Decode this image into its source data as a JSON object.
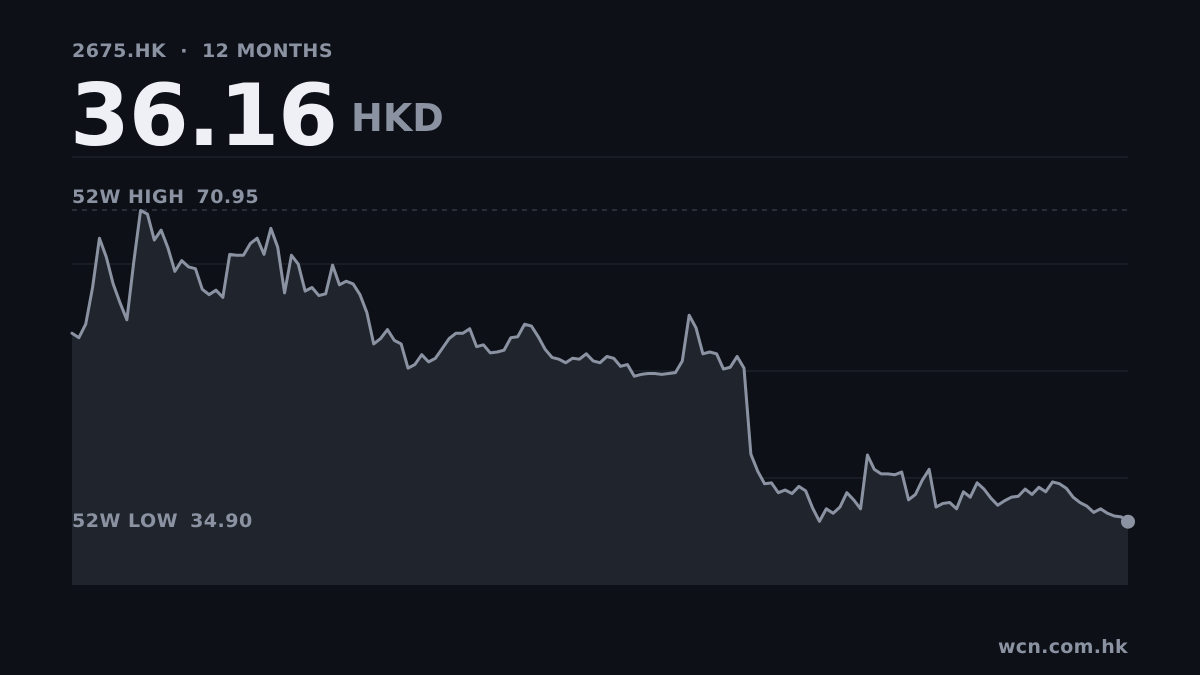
{
  "header": {
    "ticker": "2675.HK",
    "separator": "·",
    "period": "12 MONTHS"
  },
  "price": {
    "value": "36.16",
    "currency": "HKD"
  },
  "stats": {
    "high_label": "52W HIGH",
    "high_value": "70.95",
    "low_label": "52W LOW",
    "low_value": "34.90"
  },
  "footer": {
    "source": "wcn.com.hk"
  },
  "colors": {
    "background": "#0d1017",
    "line": "#8b93a3",
    "area": "#20242c",
    "grid": "#232833"
  },
  "chart_data": {
    "type": "area",
    "ylim": [
      25.0,
      71.0
    ],
    "grid": true,
    "reference_lines": [
      {
        "label": "52W HIGH",
        "value": 70.95
      },
      {
        "label": "52W LOW",
        "value": 34.9
      }
    ],
    "values": [
      57.2,
      56.7,
      58.2,
      62.3,
      67.8,
      65.7,
      62.7,
      60.6,
      58.7,
      65.1,
      70.9,
      70.5,
      67.6,
      68.7,
      66.7,
      64.1,
      65.3,
      64.6,
      64.4,
      62.1,
      61.5,
      62.0,
      61.2,
      66.0,
      65.9,
      65.9,
      67.2,
      67.8,
      66.0,
      68.9,
      66.8,
      61.7,
      65.9,
      64.9,
      61.9,
      62.3,
      61.4,
      61.6,
      64.8,
      62.6,
      63.0,
      62.7,
      61.5,
      59.5,
      56.0,
      56.6,
      57.6,
      56.4,
      56.0,
      53.3,
      53.7,
      54.8,
      54.0,
      54.4,
      55.5,
      56.6,
      57.2,
      57.2,
      57.7,
      55.7,
      55.9,
      55.0,
      55.1,
      55.3,
      56.7,
      56.8,
      58.2,
      58.0,
      56.8,
      55.4,
      54.5,
      54.3,
      53.9,
      54.4,
      54.3,
      54.9,
      54.1,
      53.9,
      54.6,
      54.4,
      53.5,
      53.7,
      52.4,
      52.6,
      52.7,
      52.7,
      52.6,
      52.7,
      52.8,
      54.1,
      59.2,
      57.8,
      54.9,
      55.1,
      54.9,
      53.2,
      53.4,
      54.6,
      53.3,
      43.7,
      41.8,
      40.4,
      40.5,
      39.4,
      39.7,
      39.3,
      40.1,
      39.6,
      37.7,
      36.2,
      37.6,
      37.1,
      37.8,
      39.4,
      38.6,
      37.6,
      43.6,
      42.0,
      41.5,
      41.5,
      41.4,
      41.7,
      38.6,
      39.2,
      40.8,
      42.0,
      37.8,
      38.2,
      38.3,
      37.6,
      39.5,
      38.9,
      40.5,
      39.8,
      38.8,
      38.0,
      38.5,
      38.9,
      39.0,
      39.8,
      39.2,
      40.0,
      39.5,
      40.6,
      40.4,
      39.9,
      38.9,
      38.3,
      37.9,
      37.2,
      37.6,
      37.1,
      36.8,
      36.7,
      36.16
    ]
  }
}
